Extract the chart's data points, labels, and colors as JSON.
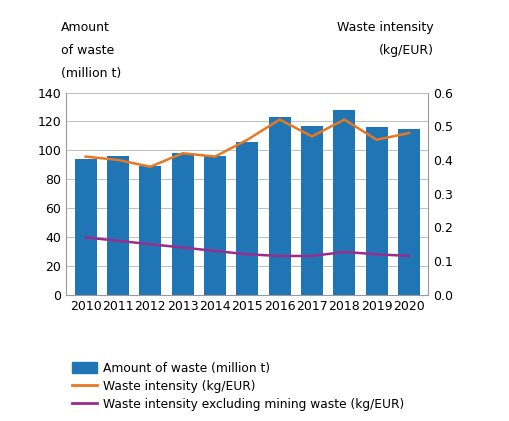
{
  "years": [
    2010,
    2011,
    2012,
    2013,
    2014,
    2015,
    2016,
    2017,
    2018,
    2019,
    2020
  ],
  "waste_amount": [
    94,
    96,
    89,
    98,
    96,
    106,
    123,
    117,
    128,
    116,
    115
  ],
  "waste_intensity": [
    0.41,
    0.4,
    0.38,
    0.42,
    0.41,
    0.46,
    0.52,
    0.47,
    0.52,
    0.46,
    0.48
  ],
  "waste_intensity_excl": [
    0.17,
    0.16,
    0.15,
    0.14,
    0.13,
    0.12,
    0.115,
    0.115,
    0.127,
    0.12,
    0.115
  ],
  "bar_color": "#2076b4",
  "line_color_intensity": "#e87722",
  "line_color_excl": "#9b2c8e",
  "left_ylim": [
    0,
    140
  ],
  "right_ylim": [
    0,
    0.6
  ],
  "left_yticks": [
    0,
    20,
    40,
    60,
    80,
    100,
    120,
    140
  ],
  "right_yticks": [
    0,
    0.1,
    0.2,
    0.3,
    0.4,
    0.5,
    0.6
  ],
  "legend_labels": [
    "Amount of waste (million t)",
    "Waste intensity (kg/EUR)",
    "Waste intensity excluding mining waste (kg/EUR)"
  ],
  "background_color": "#ffffff",
  "grid_color": "#c0c0c0"
}
